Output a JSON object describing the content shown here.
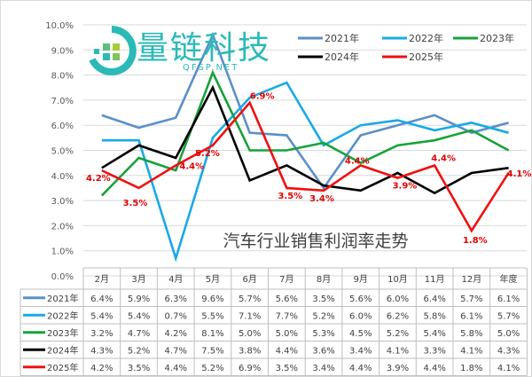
{
  "chart_data": {
    "type": "line",
    "title": "汽车行业销售利润率走势",
    "categories": [
      "2月",
      "3月",
      "4月",
      "5月",
      "6月",
      "7月",
      "8月",
      "9月",
      "10月",
      "11月",
      "12月",
      "年度"
    ],
    "ylim": [
      0,
      10
    ],
    "yticks": [
      "0.0%",
      "1.0%",
      "2.0%",
      "3.0%",
      "4.0%",
      "5.0%",
      "6.0%",
      "7.0%",
      "8.0%",
      "9.0%",
      "10.0%"
    ],
    "grid": true,
    "legend_position": "top-right",
    "series": [
      {
        "name": "2021年",
        "color": "#5b8fc9",
        "values": [
          6.4,
          5.9,
          6.3,
          9.6,
          5.7,
          5.6,
          3.5,
          5.6,
          6.0,
          6.4,
          5.7,
          6.1
        ]
      },
      {
        "name": "2022年",
        "color": "#19a9e6",
        "values": [
          5.4,
          5.4,
          0.7,
          5.5,
          7.1,
          7.7,
          5.2,
          6.0,
          6.2,
          5.8,
          6.1,
          5.7
        ]
      },
      {
        "name": "2023年",
        "color": "#17a23a",
        "values": [
          3.2,
          4.7,
          4.2,
          8.1,
          5.0,
          5.0,
          5.3,
          4.5,
          5.2,
          5.4,
          5.8,
          5.0
        ]
      },
      {
        "name": "2024年",
        "color": "#000000",
        "values": [
          4.3,
          5.2,
          4.7,
          7.5,
          3.8,
          4.4,
          3.6,
          3.4,
          4.1,
          3.3,
          4.1,
          4.3
        ]
      },
      {
        "name": "2025年",
        "color": "#ee1111",
        "values": [
          4.2,
          3.5,
          4.4,
          5.2,
          6.9,
          3.5,
          3.4,
          4.4,
          3.9,
          4.4,
          1.8,
          4.1
        ],
        "data_labels": [
          "4.2%",
          "3.5%",
          "4.4%",
          "5.2%",
          "6.9%",
          "3.5%",
          "3.4%",
          "4.4%",
          "3.9%",
          "4.4%",
          "1.8%",
          "4.1%"
        ]
      }
    ]
  },
  "watermark": {
    "name": "量链科技",
    "url_text": "QFSP.NET"
  }
}
